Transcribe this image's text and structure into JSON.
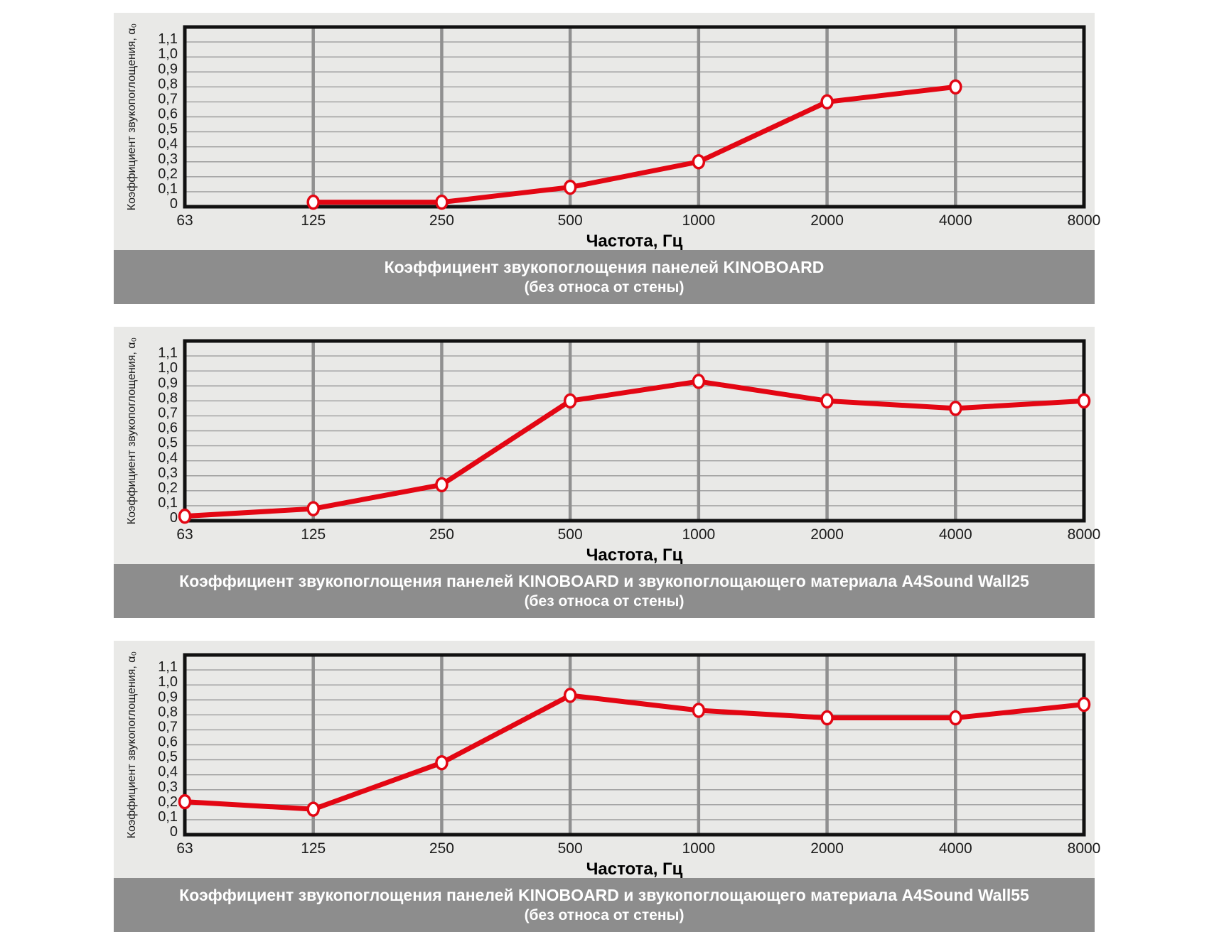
{
  "page": {
    "background": "#ffffff"
  },
  "colors": {
    "line": "#e30613",
    "marker_fill": "#ffffff",
    "panel_bg": "#e9e9e7",
    "caption_bg": "#8d8d8d",
    "caption_text": "#ffffff",
    "grid_h": "#9c9c9c",
    "grid_v": "#909090",
    "plot_border": "#111111",
    "tick_text": "#1a1a1a"
  },
  "chart_data": [
    {
      "type": "line",
      "title": "Коэффициент звукопоглощения панелей KINOBOARD",
      "subtitle": "(без относа от стены)",
      "xlabel": "Частота, Гц",
      "ylabel": "Коэффициент звукопоглощения, α₀",
      "x_scale": "log-octave",
      "grid": true,
      "legend": "none",
      "categories": [
        "63",
        "125",
        "250",
        "500",
        "1000",
        "2000",
        "4000",
        "8000"
      ],
      "values": [
        null,
        0.03,
        0.03,
        0.13,
        0.3,
        0.7,
        0.8,
        null
      ],
      "ylim": [
        0,
        1.2
      ],
      "yticks": [
        "0",
        "0,1",
        "0,2",
        "0,3",
        "0,4",
        "0,5",
        "0,6",
        "0,7",
        "0,8",
        "0,9",
        "1,0",
        "1,1"
      ]
    },
    {
      "type": "line",
      "title": "Коэффициент звукопоглощения панелей KINOBOARD и звукопоглощающего материала  A4Sound Wall25",
      "subtitle": "(без относа от стены)",
      "xlabel": "Частота, Гц",
      "ylabel": "Коэффициент звукопоглощения, α₀",
      "x_scale": "log-octave",
      "grid": true,
      "legend": "none",
      "categories": [
        "63",
        "125",
        "250",
        "500",
        "1000",
        "2000",
        "4000",
        "8000"
      ],
      "values": [
        0.03,
        0.08,
        0.24,
        0.8,
        0.93,
        0.8,
        0.75,
        0.8
      ],
      "ylim": [
        0,
        1.2
      ],
      "yticks": [
        "0",
        "0,1",
        "0,2",
        "0,3",
        "0,4",
        "0,5",
        "0,6",
        "0,7",
        "0,8",
        "0,9",
        "1,0",
        "1,1"
      ]
    },
    {
      "type": "line",
      "title": "Коэффициент звукопоглощения панелей KINOBOARD и звукопоглощающего материала  A4Sound Wall55",
      "subtitle": "(без относа от стены)",
      "xlabel": "Частота, Гц",
      "ylabel": "Коэффициент звукопоглощения, α₀",
      "x_scale": "log-octave",
      "grid": true,
      "legend": "none",
      "categories": [
        "63",
        "125",
        "250",
        "500",
        "1000",
        "2000",
        "4000",
        "8000"
      ],
      "values": [
        0.22,
        0.17,
        0.48,
        0.93,
        0.83,
        0.78,
        0.78,
        0.87
      ],
      "ylim": [
        0,
        1.2
      ],
      "yticks": [
        "0",
        "0,1",
        "0,2",
        "0,3",
        "0,4",
        "0,5",
        "0,6",
        "0,7",
        "0,8",
        "0,9",
        "1,0",
        "1,1"
      ]
    }
  ]
}
